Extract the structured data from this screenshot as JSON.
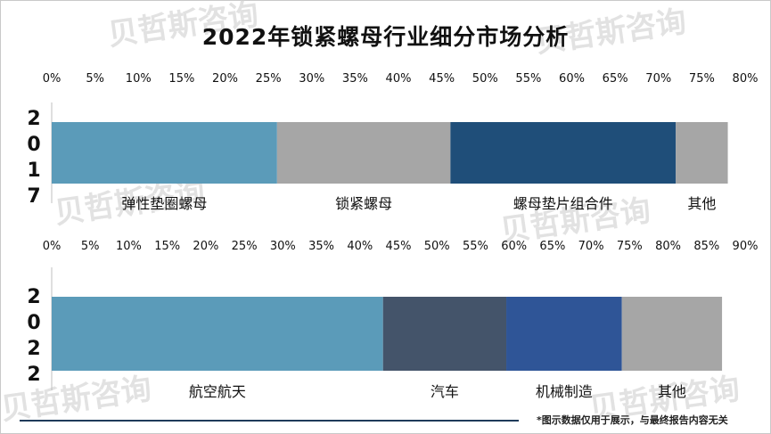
{
  "title": "2022年锁紧螺母行业细分市场分析",
  "footnote": "*图示数据仅用于展示，与最终报告内容无关",
  "watermark": "贝哲斯咨询",
  "chart_data": [
    {
      "type": "bar",
      "orientation": "horizontal-stacked",
      "year_label": "2017",
      "xlim": [
        0,
        80
      ],
      "x_ticks": [
        "0%",
        "5%",
        "10%",
        "15%",
        "20%",
        "25%",
        "30%",
        "35%",
        "40%",
        "45%",
        "50%",
        "55%",
        "60%",
        "65%",
        "70%",
        "75%",
        "80%"
      ],
      "grid": false,
      "legend": "none",
      "series": [
        {
          "name": "弹性垫圈螺母",
          "value": 26.0,
          "color": "#5b9bb9"
        },
        {
          "name": "锁紧螺母",
          "value": 20.0,
          "color": "#a6a6a6"
        },
        {
          "name": "螺母垫片组合件",
          "value": 26.0,
          "color": "#1f4e79"
        },
        {
          "name": "其他",
          "value": 6.0,
          "color": "#a6a6a6"
        }
      ]
    },
    {
      "type": "bar",
      "orientation": "horizontal-stacked",
      "year_label": "2022",
      "xlim": [
        0,
        90
      ],
      "x_ticks": [
        "0%",
        "5%",
        "10%",
        "15%",
        "20%",
        "25%",
        "30%",
        "35%",
        "40%",
        "45%",
        "50%",
        "55%",
        "60%",
        "65%",
        "70%",
        "75%",
        "80%",
        "85%",
        "90%"
      ],
      "grid": false,
      "legend": "none",
      "series": [
        {
          "name": "航空航天",
          "value": 43.0,
          "color": "#5b9bb9"
        },
        {
          "name": "汽车",
          "value": 16.0,
          "color": "#44546a"
        },
        {
          "name": "机械制造",
          "value": 15.0,
          "color": "#2f5597"
        },
        {
          "name": "其他",
          "value": 13.0,
          "color": "#a6a6a6"
        }
      ]
    }
  ]
}
